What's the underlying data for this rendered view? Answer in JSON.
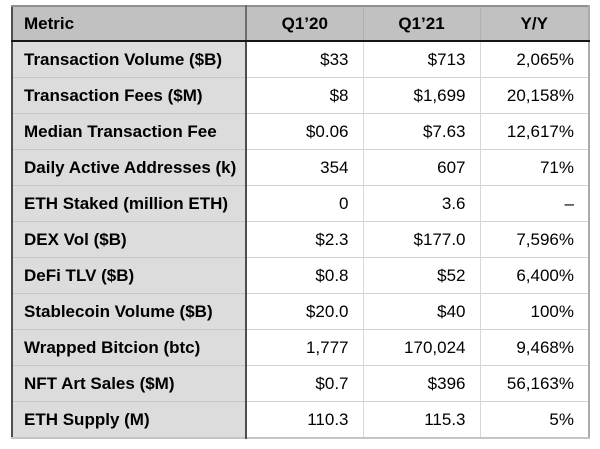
{
  "chart_data": {
    "type": "table",
    "columns": [
      "Metric",
      "Q1’20",
      "Q1’21",
      "Y/Y"
    ],
    "rows": [
      {
        "metric": "Transaction Volume ($B)",
        "q1_2020": "$33",
        "q1_2021": "$713",
        "yoy": "2,065%"
      },
      {
        "metric": "Transaction Fees ($M)",
        "q1_2020": "$8",
        "q1_2021": "$1,699",
        "yoy": "20,158%"
      },
      {
        "metric": "Median Transaction Fee",
        "q1_2020": "$0.06",
        "q1_2021": "$7.63",
        "yoy": "12,617%"
      },
      {
        "metric": "Daily Active Addresses (k)",
        "q1_2020": "354",
        "q1_2021": "607",
        "yoy": "71%"
      },
      {
        "metric": "ETH Staked (million ETH)",
        "q1_2020": "0",
        "q1_2021": "3.6",
        "yoy": "–"
      },
      {
        "metric": "DEX Vol ($B)",
        "q1_2020": "$2.3",
        "q1_2021": "$177.0",
        "yoy": "7,596%"
      },
      {
        "metric": "DeFi TLV ($B)",
        "q1_2020": "$0.8",
        "q1_2021": "$52",
        "yoy": "6,400%"
      },
      {
        "metric": "Stablecoin Volume ($B)",
        "q1_2020": "$20.0",
        "q1_2021": "$40",
        "yoy": "100%"
      },
      {
        "metric": "Wrapped Bitcion (btc)",
        "q1_2020": "1,777",
        "q1_2021": "170,024",
        "yoy": "9,468%"
      },
      {
        "metric": "NFT Art Sales ($M)",
        "q1_2020": "$0.7",
        "q1_2021": "$396",
        "yoy": "56,163%"
      },
      {
        "metric": "ETH Supply (M)",
        "q1_2020": "110.3",
        "q1_2021": "115.3",
        "yoy": "5%"
      }
    ]
  },
  "colors": {
    "header_bg": "#c1c1c1",
    "metric_column_bg": "#dcdcdc",
    "cell_bg": "#ffffff",
    "text": "#000000",
    "grid_line": "#d2d2d2",
    "header_divider": "#161616",
    "column_divider": "#4e4e4e"
  }
}
